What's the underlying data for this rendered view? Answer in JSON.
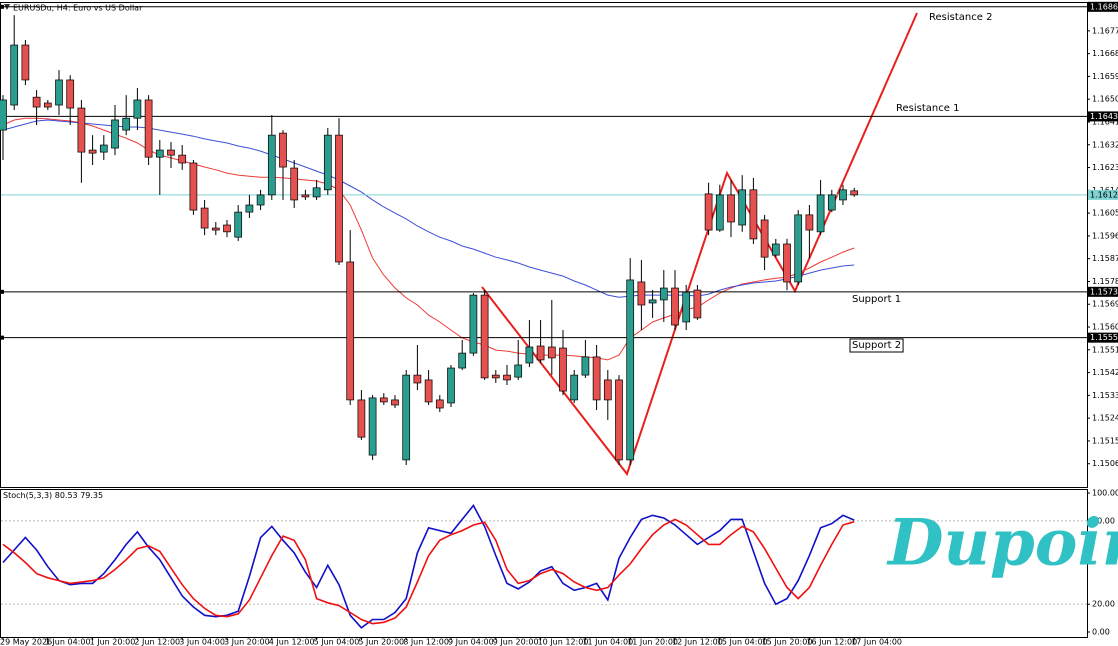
{
  "chart_data": [
    {
      "type": "candlestick",
      "title": "EURUSDu, H4: Euro vs US Dollar",
      "categories": [
        "29 May 2026",
        null,
        null,
        null,
        "1 Jun 04:00",
        null,
        null,
        null,
        "1 Jun 20:00",
        null,
        null,
        null,
        "2 Jun 12:00",
        null,
        null,
        null,
        "3 Jun 04:00",
        null,
        null,
        null,
        "3 Jun 20:00",
        null,
        null,
        null,
        "4 Jun 12:00",
        null,
        null,
        null,
        "5 Jun 04:00",
        null,
        null,
        null,
        "5 Jun 20:00",
        null,
        null,
        null,
        "8 Jun 12:00",
        null,
        null,
        null,
        "9 Jun 04:00",
        null,
        null,
        null,
        "9 Jun 20:00",
        null,
        null,
        null,
        "10 Jun 12:00",
        null,
        null,
        null,
        "11 Jun 04:00",
        null,
        null,
        null,
        "11 Jun 20:00",
        null,
        null,
        null,
        "12 Jun 12:00",
        null,
        null,
        null,
        "15 Jun 04:00",
        null,
        null,
        null,
        "15 Jun 20:00",
        null,
        null,
        null,
        "16 Jun 12:00",
        null,
        null,
        null,
        "17 Jun 04:00"
      ],
      "ohlc": [
        [
          1.16378,
          1.16516,
          1.1626,
          1.16497
        ],
        [
          1.16477,
          1.16832,
          1.16457,
          1.16714
        ],
        [
          1.16714,
          1.16734,
          1.16556,
          1.16576
        ],
        [
          1.16508,
          1.16536,
          1.16398,
          1.16469
        ],
        [
          1.16485,
          1.16497,
          1.16457,
          1.16469
        ],
        [
          1.16477,
          1.16615,
          1.16437,
          1.16576
        ],
        [
          1.16576,
          1.16595,
          1.16398,
          1.16465
        ],
        [
          1.16465,
          1.16497,
          1.1617,
          1.16291
        ],
        [
          1.16299,
          1.16358,
          1.1624,
          1.16287
        ],
        [
          1.16291,
          1.16358,
          1.1626,
          1.16319
        ],
        [
          1.16307,
          1.16477,
          1.16279,
          1.16418
        ],
        [
          1.16378,
          1.16516,
          1.16358,
          1.16425
        ],
        [
          1.16425,
          1.16544,
          1.16378,
          1.16497
        ],
        [
          1.16497,
          1.16516,
          1.1624,
          1.16271
        ],
        [
          1.16271,
          1.16339,
          1.16122,
          1.16299
        ],
        [
          1.16299,
          1.16331,
          1.16228,
          1.16279
        ],
        [
          1.16279,
          1.16319,
          1.16221,
          1.16248
        ],
        [
          1.16248,
          1.1626,
          1.16043,
          1.16062
        ],
        [
          1.1607,
          1.16102,
          1.15963,
          1.15991
        ],
        [
          1.15991,
          1.16015,
          1.15963,
          1.15983
        ],
        [
          1.16003,
          1.16023,
          1.15955,
          1.15976
        ],
        [
          1.15955,
          1.16082,
          1.1594,
          1.16054
        ],
        [
          1.16054,
          1.16122,
          1.16031,
          1.16082
        ],
        [
          1.16082,
          1.16142,
          1.16062,
          1.16122
        ],
        [
          1.16122,
          1.16437,
          1.16102,
          1.16358
        ],
        [
          1.16366,
          1.16378,
          1.16102,
          1.16232
        ],
        [
          1.16228,
          1.1626,
          1.1607,
          1.16102
        ],
        [
          1.16122,
          1.16142,
          1.16102,
          1.16114
        ],
        [
          1.16114,
          1.16181,
          1.16102,
          1.1615
        ],
        [
          1.16142,
          1.16386,
          1.16122,
          1.16358
        ],
        [
          1.16358,
          1.16425,
          1.15845,
          1.15857
        ],
        [
          1.15857,
          1.15983,
          1.15292,
          1.15312
        ],
        [
          1.15312,
          1.15351,
          1.15154,
          1.15165
        ],
        [
          1.15094,
          1.15331,
          1.15075,
          1.1532
        ],
        [
          1.1532,
          1.15339,
          1.15292,
          1.15304
        ],
        [
          1.15312,
          1.15331,
          1.1528,
          1.15292
        ],
        [
          1.15075,
          1.1543,
          1.15055,
          1.1541
        ],
        [
          1.1541,
          1.15529,
          1.15351,
          1.15379
        ],
        [
          1.15391,
          1.1543,
          1.15292,
          1.15304
        ],
        [
          1.15312,
          1.15331,
          1.15264,
          1.1528
        ],
        [
          1.153,
          1.1545,
          1.15284,
          1.15438
        ],
        [
          1.15438,
          1.15549,
          1.1543,
          1.15497
        ],
        [
          1.15497,
          1.15734,
          1.15486,
          1.15726
        ],
        [
          1.15726,
          1.15746,
          1.15391,
          1.15399
        ],
        [
          1.1541,
          1.1543,
          1.15379,
          1.15399
        ],
        [
          1.1541,
          1.1545,
          1.15371,
          1.15391
        ],
        [
          1.15402,
          1.15549,
          1.15391,
          1.1545
        ],
        [
          1.15458,
          1.15628,
          1.15442,
          1.15521
        ],
        [
          1.15525,
          1.15628,
          1.15458,
          1.1547
        ],
        [
          1.15521,
          1.15707,
          1.1541,
          1.15478
        ],
        [
          1.15517,
          1.15588,
          1.15331,
          1.15347
        ],
        [
          1.15312,
          1.1543,
          1.153,
          1.1541
        ],
        [
          1.1541,
          1.15549,
          1.15399,
          1.15482
        ],
        [
          1.15482,
          1.15529,
          1.15272,
          1.15312
        ],
        [
          1.15391,
          1.1543,
          1.15233,
          1.15312
        ],
        [
          1.15391,
          1.1541,
          1.15055,
          1.15075
        ],
        [
          1.15075,
          1.15872,
          1.15055,
          1.15786
        ],
        [
          1.15778,
          1.15865,
          1.15588,
          1.15687
        ],
        [
          1.15695,
          1.15746,
          1.15636,
          1.15707
        ],
        [
          1.15707,
          1.15825,
          1.1562,
          1.15754
        ],
        [
          1.15754,
          1.15825,
          1.15588,
          1.15608
        ],
        [
          1.1562,
          1.15766,
          1.15588,
          1.15738
        ],
        [
          1.15746,
          1.15766,
          1.15628,
          1.15636
        ],
        [
          1.16126,
          1.1617,
          1.15963,
          1.15983
        ],
        [
          1.15983,
          1.16162,
          1.15976,
          1.16122
        ],
        [
          1.16122,
          1.16181,
          1.15955,
          1.16015
        ],
        [
          1.16003,
          1.162,
          1.15976,
          1.16142
        ],
        [
          1.16142,
          1.16189,
          1.15928,
          1.15948
        ],
        [
          1.16023,
          1.16043,
          1.15825,
          1.15876
        ],
        [
          1.15884,
          1.15948,
          1.15876,
          1.15928
        ],
        [
          1.15928,
          1.15948,
          1.15746,
          1.15778
        ],
        [
          1.15778,
          1.16062,
          1.15766,
          1.16043
        ],
        [
          1.16043,
          1.16082,
          1.15872,
          1.15983
        ],
        [
          1.15976,
          1.16181,
          1.15963,
          1.16122
        ],
        [
          1.16062,
          1.16142,
          1.16054,
          1.16122
        ],
        [
          1.16102,
          1.16162,
          1.16082,
          1.16142
        ],
        [
          1.16138,
          1.1615,
          1.16114,
          1.16122
        ]
      ],
      "up_color": "#2a9d8f",
      "down_color": "#e4514f",
      "series": [
        {
          "color": "#ef3b36",
          "values": [
            1.16398,
            1.16418,
            1.16425,
            1.16425,
            1.16422,
            1.16418,
            1.16414,
            1.16406,
            1.16394,
            1.16378,
            1.16362,
            1.16346,
            1.16327,
            1.16299,
            1.16279,
            1.16268,
            1.16256,
            1.16244,
            1.16232,
            1.16221,
            1.16208,
            1.162,
            1.16196,
            1.16192,
            1.16192,
            1.16189,
            1.16185,
            1.16181,
            1.16177,
            1.16165,
            1.16142,
            1.16082,
            1.15983,
            1.15872,
            1.15805,
            1.15754,
            1.15715,
            1.15687,
            1.15647,
            1.1562,
            1.15588,
            1.15557,
            1.15541,
            1.15529,
            1.15509,
            1.15505,
            1.15497,
            1.15493,
            1.15489,
            1.15489,
            1.15489,
            1.15486,
            1.15482,
            1.15478,
            1.1547,
            1.15489,
            1.15557,
            1.15588,
            1.1562,
            1.15636,
            1.15651,
            1.15669,
            1.15679,
            1.15707,
            1.15734,
            1.15754,
            1.1577,
            1.15778,
            1.15786,
            1.15793,
            1.15797,
            1.15813,
            1.15833,
            1.15857,
            1.15876,
            1.15896,
            1.15912
          ]
        },
        {
          "color": "#3d4fd8",
          "values": [
            1.16378,
            1.1639,
            1.16402,
            1.16414,
            1.16418,
            1.16414,
            1.1641,
            1.16406,
            1.16402,
            1.16398,
            1.16394,
            1.1639,
            1.1639,
            1.16386,
            1.16378,
            1.1637,
            1.16362,
            1.16354,
            1.16343,
            1.16335,
            1.16327,
            1.16315,
            1.16307,
            1.16295,
            1.16279,
            1.16264,
            1.16248,
            1.16232,
            1.16216,
            1.162,
            1.16181,
            1.16157,
            1.16133,
            1.16102,
            1.16074,
            1.1605,
            1.16027,
            1.15999,
            1.15976,
            1.15955,
            1.1594,
            1.1592,
            1.15908,
            1.15892,
            1.15876,
            1.15865,
            1.15853,
            1.15837,
            1.15825,
            1.15813,
            1.15801,
            1.15782,
            1.15766,
            1.15746,
            1.15726,
            1.15718,
            1.15722,
            1.15726,
            1.15726,
            1.15726,
            1.15726,
            1.15726,
            1.15722,
            1.1573,
            1.15746,
            1.15758,
            1.15766,
            1.15774,
            1.15778,
            1.15782,
            1.1579,
            1.15801,
            1.15813,
            1.15825,
            1.15833,
            1.15841,
            1.15845
          ]
        }
      ],
      "levels": [
        {
          "label": "Resistance 2",
          "value": 1.16865
        },
        {
          "label": "Resistance 1",
          "value": 1.16432
        },
        {
          "label": "Support 1",
          "value": 1.15739
        },
        {
          "label": "Support 2",
          "value": 1.15558
        }
      ],
      "price_line": {
        "value": 1.16122,
        "color": "#7fd3d3"
      },
      "ylim": [
        1.14968,
        1.16884
      ],
      "yticks": [
        {
          "value": 1.1677,
          "label": "1.16770"
        },
        {
          "value": 1.1668,
          "label": "1.16680"
        },
        {
          "value": 1.1659,
          "label": "1.16590"
        },
        {
          "value": 1.165,
          "label": "1.16500"
        },
        {
          "value": 1.1641,
          "label": "1.16410"
        },
        {
          "value": 1.1632,
          "label": "1.16320"
        },
        {
          "value": 1.1623,
          "label": "1.16230"
        },
        {
          "value": 1.1614,
          "label": "1.16140"
        },
        {
          "value": 1.1605,
          "label": "1.16050"
        },
        {
          "value": 1.1596,
          "label": "1.15960"
        },
        {
          "value": 1.1587,
          "label": "1.15870"
        },
        {
          "value": 1.1578,
          "label": "1.15780"
        },
        {
          "value": 1.1569,
          "label": "1.15690"
        },
        {
          "value": 1.156,
          "label": "1.15600"
        },
        {
          "value": 1.1551,
          "label": "1.15510"
        },
        {
          "value": 1.1542,
          "label": "1.15420"
        },
        {
          "value": 1.1533,
          "label": "1.15330"
        },
        {
          "value": 1.1524,
          "label": "1.15240"
        },
        {
          "value": 1.1515,
          "label": "1.15150"
        },
        {
          "value": 1.1506,
          "label": "1.15060"
        }
      ]
    },
    {
      "type": "line",
      "title": "Stoch(5,3,3)",
      "series": [
        {
          "color": "#1010c8",
          "values": [
            50,
            59,
            68,
            59,
            47,
            37,
            34,
            35,
            35,
            42,
            52,
            63,
            72,
            61,
            52,
            39,
            26,
            18,
            12,
            11,
            12,
            15,
            40,
            68,
            76,
            66,
            57,
            43,
            32,
            48,
            34,
            12,
            3,
            9,
            9,
            14,
            24,
            57,
            75,
            73,
            71,
            81,
            91,
            76,
            55,
            35,
            31,
            36,
            44,
            47,
            35,
            30,
            32,
            35,
            23,
            53,
            68,
            81,
            84,
            82,
            77,
            70,
            63,
            68,
            73,
            81,
            81,
            58,
            35,
            20,
            24,
            37,
            55,
            75,
            78,
            84,
            80.53
          ]
        },
        {
          "color": "#f01010",
          "values": [
            63,
            57,
            50,
            42,
            39,
            37,
            35,
            36,
            37,
            39,
            45,
            52,
            60,
            62,
            58,
            46,
            34,
            24,
            17,
            12,
            11,
            13,
            23,
            39,
            55,
            69,
            66,
            52,
            24,
            21,
            19,
            14,
            9,
            6,
            7,
            10,
            18,
            36,
            55,
            66,
            70,
            73,
            77,
            79,
            66,
            45,
            35,
            37,
            42,
            45,
            42,
            36,
            32,
            30,
            32,
            41,
            49,
            60,
            70,
            77,
            81,
            77,
            70,
            63,
            63,
            70,
            76,
            72,
            60,
            46,
            32,
            24,
            32,
            48,
            63,
            77,
            79.35
          ]
        }
      ],
      "levels": [
        80,
        20
      ],
      "ylim": [
        -3.6,
        102.9
      ],
      "yticks": [
        {
          "value": 100,
          "label": "100.00"
        },
        {
          "value": 80,
          "label": "80.00"
        },
        {
          "value": 20,
          "label": "20.00"
        },
        {
          "value": 0,
          "label": "0.00"
        }
      ],
      "watermark": "Dupoin"
    }
  ]
}
